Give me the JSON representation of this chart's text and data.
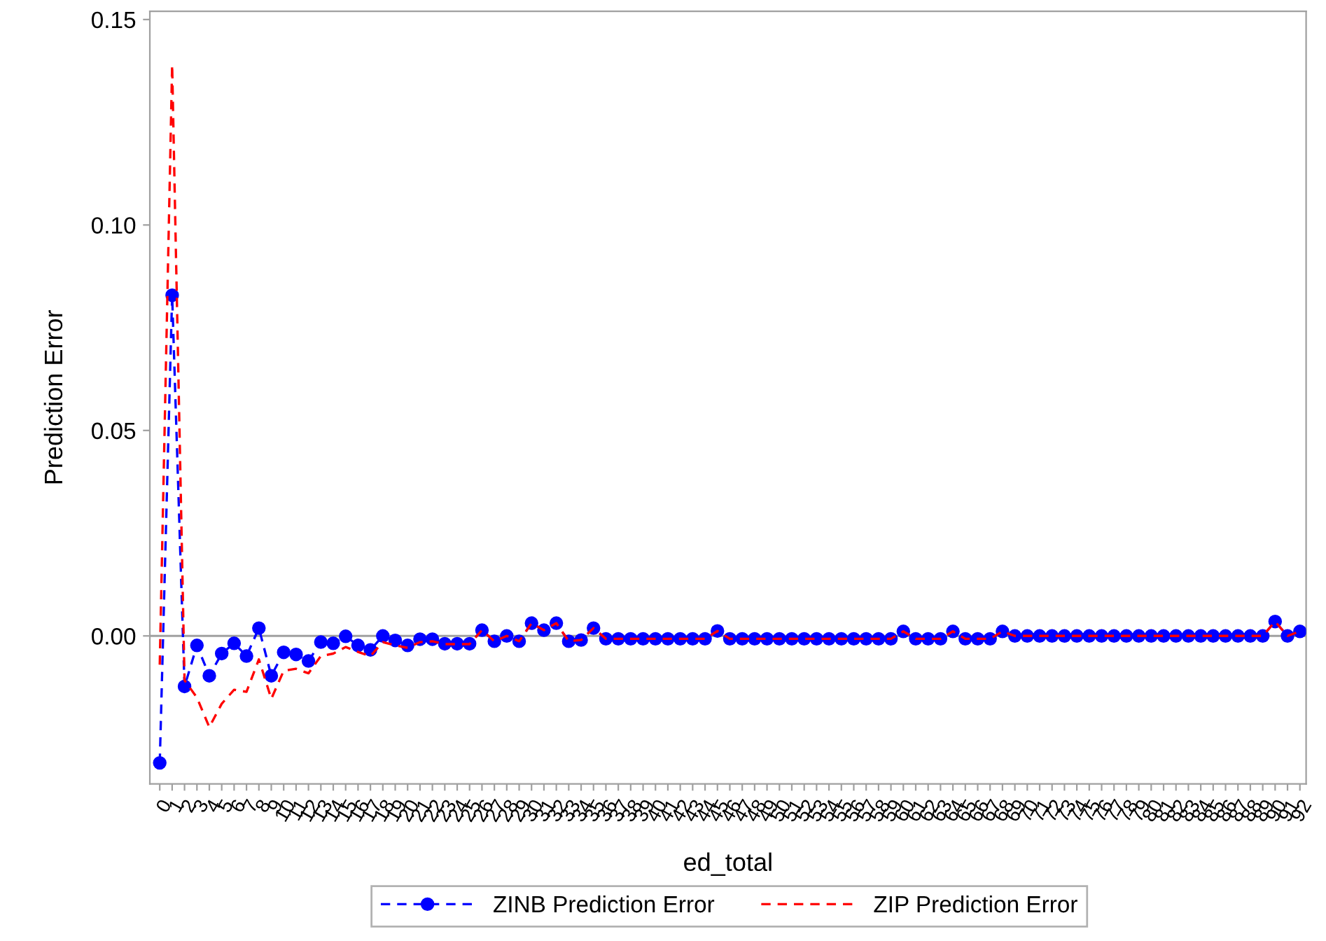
{
  "chart_data": {
    "type": "line",
    "xlabel": "ed_total",
    "ylabel": "Prediction Error",
    "categories": [
      "0",
      "1",
      "2",
      "3",
      "4",
      "5",
      "6",
      "7",
      "8",
      "9",
      "10",
      "11",
      "12",
      "13",
      "14",
      "15",
      "16",
      "17",
      "18",
      "19",
      "20",
      "21",
      "22",
      "23",
      "24",
      "25",
      "26",
      "27",
      "28",
      "29",
      "30",
      "31",
      "32",
      "33",
      "34",
      "35",
      "36",
      "37",
      "38",
      "39",
      "40",
      "41",
      "42",
      "43",
      "44",
      "45",
      "46",
      "47",
      "48",
      "49",
      "50",
      "51",
      "52",
      "53",
      "54",
      "55",
      "56",
      "57",
      "58",
      "59",
      "60",
      "61",
      "62",
      "63",
      "64",
      "65",
      "66",
      "67",
      "68",
      "69",
      "70",
      "71",
      "72",
      "73",
      "74",
      "75",
      "76",
      "77",
      "78",
      "79",
      "80",
      "81",
      "82",
      "83",
      "84",
      "85",
      "86",
      "87",
      "88",
      "89",
      "90",
      "91",
      "92"
    ],
    "series": [
      {
        "name": "ZINB Prediction Error",
        "color": "#0000ff",
        "marker": "circle",
        "line_style": "dashed",
        "values": [
          -0.0309,
          0.0829,
          -0.0123,
          -0.0023,
          -0.0097,
          -0.0043,
          -0.0018,
          -0.0049,
          0.0019,
          -0.0097,
          -0.004,
          -0.0045,
          -0.0061,
          -0.0015,
          -0.0018,
          -0.0001,
          -0.0023,
          -0.0034,
          0.0,
          -0.0011,
          -0.0023,
          -0.0008,
          -0.0008,
          -0.0019,
          -0.0019,
          -0.0019,
          0.0014,
          -0.0013,
          0.0,
          -0.0013,
          0.0031,
          0.0014,
          0.0031,
          -0.0013,
          -0.001,
          0.0019,
          -0.0007,
          -0.0007,
          -0.0007,
          -0.0007,
          -0.0007,
          -0.0007,
          -0.0007,
          -0.0007,
          -0.0007,
          0.0012,
          -0.0007,
          -0.0007,
          -0.0007,
          -0.0007,
          -0.0007,
          -0.0007,
          -0.0007,
          -0.0007,
          -0.0007,
          -0.0007,
          -0.0007,
          -0.0007,
          -0.0007,
          -0.0007,
          0.0011,
          -0.0007,
          -0.0007,
          -0.0007,
          0.0011,
          -0.0007,
          -0.0007,
          -0.0007,
          0.0011,
          0.0,
          0.0,
          0.0,
          0.0,
          0.0,
          0.0,
          0.0,
          0.0,
          0.0,
          0.0,
          0.0,
          0.0,
          0.0,
          0.0,
          0.0,
          0.0,
          0.0,
          0.0,
          0.0,
          0.0,
          0.0,
          0.0035,
          0.0,
          0.0011
        ]
      },
      {
        "name": "ZIP Prediction Error",
        "color": "#ff0000",
        "marker": "none",
        "line_style": "dashed",
        "values": [
          -0.007,
          0.139,
          -0.0108,
          -0.015,
          -0.0222,
          -0.0165,
          -0.0131,
          -0.0136,
          -0.0057,
          -0.0153,
          -0.0085,
          -0.008,
          -0.0091,
          -0.0049,
          -0.0043,
          -0.0027,
          -0.0039,
          -0.0049,
          -0.0015,
          -0.0023,
          -0.0029,
          -0.0015,
          -0.0013,
          -0.002,
          -0.002,
          -0.002,
          0.0014,
          -0.0013,
          0.0,
          -0.0013,
          0.0031,
          0.0014,
          0.0031,
          -0.0013,
          -0.001,
          0.0019,
          -0.0007,
          -0.0007,
          -0.0007,
          -0.0007,
          -0.0007,
          -0.0007,
          -0.0007,
          -0.0007,
          -0.0007,
          0.0012,
          -0.0007,
          -0.0007,
          -0.0007,
          -0.0007,
          -0.0007,
          -0.0007,
          -0.0007,
          -0.0007,
          -0.0007,
          -0.0007,
          -0.0007,
          -0.0007,
          -0.0007,
          -0.0007,
          0.0011,
          -0.0007,
          -0.0007,
          -0.0007,
          0.0011,
          -0.0007,
          -0.0007,
          -0.0007,
          0.0011,
          0.0,
          0.0,
          0.0,
          0.0,
          0.0,
          0.0,
          0.0,
          0.0,
          0.0,
          0.0,
          0.0,
          0.0,
          0.0,
          0.0,
          0.0,
          0.0,
          0.0,
          0.0,
          0.0,
          0.0,
          0.0,
          0.0035,
          0.0,
          0.0011
        ]
      }
    ],
    "ylim": [
      -0.036,
      0.152
    ],
    "yticks": [
      {
        "value": 0,
        "label": "0.00"
      },
      {
        "value": 0.05,
        "label": "0.05"
      },
      {
        "value": 0.1,
        "label": "0.10"
      },
      {
        "value": 0.15,
        "label": "0.15"
      }
    ],
    "ref_lines": [
      {
        "axis": "y",
        "value": 0,
        "color": "#a0a0a0"
      }
    ],
    "grid": false,
    "legend": "bottom"
  }
}
